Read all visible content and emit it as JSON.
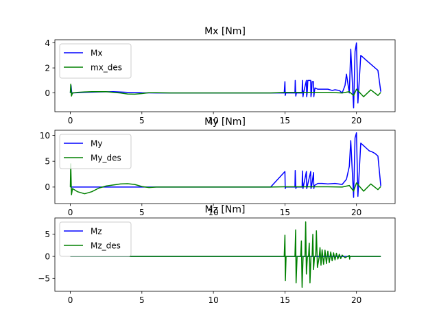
{
  "chart_data": [
    {
      "type": "line",
      "title": "Mx [Nm]",
      "xlim": [
        -1.08,
        22.7
      ],
      "ylim": [
        -1.5,
        4.25
      ],
      "xticks": [
        0,
        5,
        10,
        15,
        20
      ],
      "yticks": [
        0,
        2,
        4
      ],
      "legend": "top-left",
      "grid": false,
      "series": [
        {
          "name": "Mx",
          "color": "#0000ff",
          "x": [
            0,
            0.05,
            0.1,
            0.5,
            1,
            2,
            3,
            4,
            5,
            6,
            8,
            10,
            12,
            14,
            14.95,
            15.0,
            15.02,
            15.06,
            15.1,
            15.7,
            15.72,
            15.76,
            15.8,
            16.2,
            16.22,
            16.26,
            16.3,
            16.5,
            16.52,
            16.56,
            16.6,
            16.8,
            16.82,
            16.86,
            16.9,
            17.0,
            17.02,
            17.06,
            17.1,
            17.3,
            17.5,
            17.8,
            18.0,
            18.3,
            18.5,
            18.8,
            19.0,
            19.2,
            19.3,
            19.5,
            19.6,
            19.8,
            19.9,
            20.0,
            20.1,
            20.3,
            20.5,
            20.7,
            20.9,
            21.1,
            21.3,
            21.5,
            21.7
          ],
          "y": [
            0,
            0.6,
            0,
            0.02,
            0.05,
            0.08,
            0.1,
            0.05,
            0.01,
            0.0,
            0.0,
            0.0,
            0.0,
            0.0,
            0.0,
            0.9,
            -0.2,
            0.0,
            0.0,
            0.0,
            1.0,
            -0.25,
            0.0,
            0.0,
            1.0,
            -0.3,
            0.0,
            1.0,
            -0.3,
            0.05,
            1.0,
            1.0,
            -0.3,
            0.05,
            0.9,
            0.9,
            -0.3,
            0.1,
            0.4,
            0.3,
            0.3,
            0.3,
            0.3,
            0.2,
            0.25,
            0.2,
            0.0,
            0.6,
            1.5,
            0.0,
            3.5,
            -1.2,
            3.3,
            4.0,
            -0.8,
            3.0,
            2.8,
            2.6,
            2.4,
            2.2,
            2.0,
            1.8,
            0.1
          ]
        },
        {
          "name": "mx_des",
          "color": "#008000",
          "x": [
            0,
            0.03,
            0.08,
            0.15,
            0.5,
            1,
            1.5,
            2,
            2.5,
            3,
            3.5,
            4,
            4.5,
            5,
            5.5,
            6,
            7,
            8,
            10,
            12,
            14,
            15,
            16,
            17,
            18,
            19,
            19.5,
            19.8,
            20,
            20.5,
            21,
            21.5,
            21.7
          ],
          "y": [
            0,
            0.7,
            -0.25,
            0.0,
            0.05,
            0.08,
            0.1,
            0.1,
            0.1,
            0.05,
            0.0,
            -0.08,
            -0.1,
            -0.05,
            0.02,
            0.02,
            0.0,
            0.0,
            0.0,
            0.0,
            0.0,
            0.05,
            0.05,
            0.05,
            0.05,
            0.0,
            0.1,
            -0.2,
            0.3,
            -0.3,
            0.25,
            -0.2,
            0.05
          ]
        }
      ]
    },
    {
      "type": "line",
      "title": "My [Nm]",
      "xlim": [
        -1.08,
        22.7
      ],
      "ylim": [
        -3.2,
        11
      ],
      "xticks": [
        0,
        5,
        10,
        15,
        20
      ],
      "yticks": [
        0,
        5,
        10
      ],
      "legend": "top-left",
      "grid": false,
      "series": [
        {
          "name": "My",
          "color": "#0000ff",
          "x": [
            0,
            0.5,
            2,
            5,
            10,
            14,
            15.0,
            15.02,
            15.06,
            15.1,
            15.7,
            15.72,
            15.76,
            15.8,
            16.2,
            16.22,
            16.26,
            16.5,
            16.52,
            16.56,
            16.8,
            16.82,
            16.86,
            17.0,
            17.02,
            17.06,
            17.3,
            17.6,
            18.0,
            18.5,
            19.0,
            19.3,
            19.5,
            19.6,
            19.8,
            19.9,
            20.0,
            20.1,
            20.3,
            20.5,
            20.7,
            20.9,
            21.1,
            21.3,
            21.5,
            21.7
          ],
          "y": [
            0,
            0,
            0,
            0,
            0,
            0,
            3.0,
            -0.3,
            0.0,
            0.0,
            0.0,
            3.2,
            -0.3,
            0.0,
            0.0,
            3.1,
            -0.3,
            3.0,
            -0.3,
            0.1,
            3.0,
            -0.3,
            0.1,
            2.8,
            -0.3,
            0.3,
            0.7,
            0.7,
            0.6,
            0.7,
            0.5,
            1.5,
            4.0,
            9.0,
            -2.0,
            9.5,
            10.5,
            -1.8,
            8.5,
            8.0,
            7.5,
            7.0,
            6.8,
            6.5,
            6.0,
            0.2
          ]
        },
        {
          "name": "My_des",
          "color": "#008000",
          "x": [
            0,
            0.03,
            0.08,
            0.15,
            0.5,
            1.0,
            1.5,
            2.0,
            2.5,
            3.0,
            3.5,
            4.0,
            4.5,
            5.0,
            5.5,
            6.0,
            8,
            10,
            12,
            14,
            15,
            16,
            17,
            18,
            19,
            19.5,
            19.8,
            20,
            20.5,
            21,
            21.5,
            21.7
          ],
          "y": [
            0,
            4.5,
            -1.5,
            -0.3,
            -0.9,
            -1.3,
            -0.9,
            -0.2,
            0.2,
            0.4,
            0.6,
            0.65,
            0.5,
            0.1,
            -0.1,
            0.0,
            0.0,
            0.0,
            0.0,
            0.0,
            0.05,
            0.05,
            0.05,
            0.05,
            0.0,
            0.3,
            -0.8,
            0.8,
            -0.8,
            0.6,
            -0.5,
            0.1
          ]
        }
      ]
    },
    {
      "type": "line",
      "title": "Mz [Nm]",
      "xlim": [
        -1.08,
        22.7
      ],
      "ylim": [
        -7.9,
        8.7
      ],
      "xticks": [
        0,
        5,
        10,
        15,
        20
      ],
      "yticks": [
        -5,
        0,
        5
      ],
      "legend": "top-left",
      "grid": false,
      "series": [
        {
          "name": "Mz",
          "color": "#0000ff",
          "x": [
            0,
            5,
            10,
            15,
            20,
            21.7
          ],
          "y": [
            0,
            0,
            0,
            0,
            0,
            0
          ]
        },
        {
          "name": "Mz_des",
          "color": "#008000",
          "x": [
            0,
            5,
            10,
            14.95,
            15.0,
            15.03,
            15.08,
            15.7,
            15.75,
            15.78,
            15.85,
            16.1,
            16.15,
            16.2,
            16.27,
            16.4,
            16.45,
            16.5,
            16.57,
            16.65,
            16.7,
            16.75,
            16.82,
            16.9,
            16.95,
            17.0,
            17.07,
            17.15,
            17.2,
            17.27,
            17.4,
            17.45,
            17.52,
            17.6,
            17.7,
            17.8,
            17.9,
            18.0,
            18.1,
            18.2,
            18.3,
            18.4,
            18.5,
            18.6,
            18.7,
            18.8,
            18.9,
            19.0,
            19.2,
            19.5,
            19.52,
            19.55,
            19.7,
            20,
            21.7
          ],
          "y": [
            0,
            0,
            0,
            0,
            4.8,
            -5.5,
            0.0,
            0.0,
            6.0,
            -6.0,
            0.0,
            0.0,
            3.5,
            -7.0,
            0.0,
            0.0,
            7.8,
            -4.0,
            0.0,
            0.0,
            3.0,
            -6.0,
            0.0,
            0.0,
            5.0,
            -3.0,
            0.0,
            0.0,
            5.8,
            -2.5,
            0.0,
            2.0,
            -2.0,
            1.5,
            -1.8,
            1.4,
            -1.6,
            1.2,
            -1.4,
            1.0,
            -1.0,
            0.8,
            -0.8,
            0.7,
            -0.6,
            0.5,
            -0.5,
            0.3,
            -0.3,
            0.2,
            -0.6,
            0.0,
            0.0,
            0.0,
            0.0
          ]
        }
      ]
    }
  ]
}
